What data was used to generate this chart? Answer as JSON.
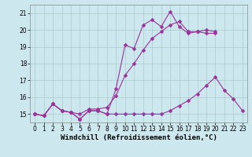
{
  "xlabel": "Windchill (Refroidissement éolien,°C)",
  "bg_color": "#cce8ee",
  "grid_color": "#aacccc",
  "line_color": "#993399",
  "x": [
    0,
    1,
    2,
    3,
    4,
    5,
    6,
    7,
    8,
    9,
    10,
    11,
    12,
    13,
    14,
    15,
    16,
    17,
    18,
    19,
    20,
    21,
    22,
    23
  ],
  "line1": [
    15.0,
    14.9,
    15.6,
    15.2,
    15.1,
    14.7,
    15.2,
    15.2,
    15.0,
    16.5,
    19.1,
    18.9,
    20.3,
    20.6,
    20.2,
    21.1,
    20.2,
    19.8,
    19.9,
    20.0,
    19.9,
    null,
    null,
    null
  ],
  "line2": [
    15.0,
    14.9,
    15.6,
    15.2,
    15.1,
    14.7,
    15.2,
    15.2,
    15.0,
    15.0,
    15.0,
    15.0,
    15.0,
    15.0,
    15.0,
    15.2,
    15.5,
    15.8,
    16.2,
    16.7,
    17.2,
    16.4,
    15.9,
    15.2
  ],
  "line3": [
    15.0,
    14.9,
    15.6,
    15.2,
    15.1,
    15.0,
    15.3,
    15.3,
    15.4,
    16.1,
    17.3,
    18.0,
    18.8,
    19.5,
    19.9,
    20.3,
    20.5,
    19.9,
    19.9,
    19.8,
    19.8,
    null,
    null,
    null
  ],
  "ylim": [
    14.5,
    21.5
  ],
  "xlim": [
    -0.5,
    23.5
  ],
  "yticks": [
    15,
    16,
    17,
    18,
    19,
    20,
    21
  ],
  "xticks": [
    0,
    1,
    2,
    3,
    4,
    5,
    6,
    7,
    8,
    9,
    10,
    11,
    12,
    13,
    14,
    15,
    16,
    17,
    18,
    19,
    20,
    21,
    22,
    23
  ],
  "tick_fontsize": 5.5,
  "label_fontsize": 6.5
}
